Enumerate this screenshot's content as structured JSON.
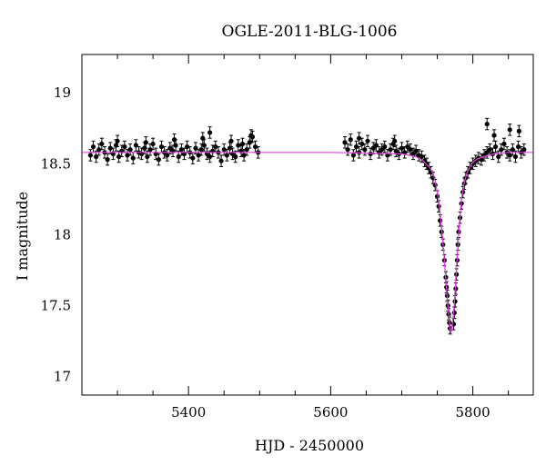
{
  "chart_data": {
    "type": "scatter",
    "title": "OGLE-2011-BLG-1006",
    "xlabel": "HJD - 2450000",
    "ylabel": "I magnitude",
    "xlim": [
      5250,
      5885
    ],
    "ylim": [
      19.27,
      16.87
    ],
    "y_inverted": true,
    "xticks": [
      5400,
      5600,
      5800
    ],
    "yticks": [
      17,
      17.5,
      18,
      18.5,
      19
    ],
    "ytick_labels": [
      "17",
      "17.5",
      "18",
      "18.5",
      "19"
    ],
    "grid": false,
    "legend": "none",
    "colors": {
      "points": "#000000",
      "model": "#e040e0",
      "frame": "#000000"
    },
    "model_curve": {
      "description_free": true,
      "baseline_mag": 18.58,
      "peak_mag": 17.31,
      "peak_time": 5769,
      "x": [
        5250,
        5500,
        5600,
        5700,
        5720,
        5730,
        5740,
        5745,
        5750,
        5753,
        5756,
        5759,
        5762,
        5764,
        5766,
        5768,
        5769,
        5770,
        5772,
        5774,
        5776,
        5778,
        5781,
        5784,
        5788,
        5792,
        5798,
        5805,
        5815,
        5830,
        5850,
        5885
      ],
      "y": [
        18.58,
        18.58,
        18.58,
        18.57,
        18.55,
        18.52,
        18.47,
        18.42,
        18.3,
        18.2,
        18.05,
        17.88,
        17.68,
        17.55,
        17.44,
        17.34,
        17.31,
        17.32,
        17.4,
        17.52,
        17.68,
        17.85,
        18.07,
        18.25,
        18.37,
        18.44,
        18.5,
        18.53,
        18.55,
        18.57,
        18.58,
        18.58
      ]
    },
    "series": [
      {
        "x": [
          5262,
          5266,
          5270,
          5274,
          5278,
          5282,
          5286,
          5290,
          5294,
          5298,
          5302,
          5306,
          5310,
          5314,
          5318,
          5322,
          5326,
          5330,
          5334,
          5338,
          5342,
          5346,
          5350,
          5354,
          5358,
          5362,
          5366,
          5370,
          5374,
          5378,
          5382,
          5386,
          5390,
          5394,
          5398,
          5402,
          5406,
          5410,
          5414,
          5418,
          5422,
          5426,
          5430,
          5434,
          5438,
          5442,
          5446,
          5450,
          5454,
          5458,
          5462,
          5466,
          5470,
          5474,
          5478,
          5482,
          5486,
          5490,
          5494,
          5498,
          5300,
          5340,
          5380,
          5420,
          5460,
          5488,
          5430,
          5476
        ],
        "y": [
          18.56,
          18.62,
          18.55,
          18.6,
          18.64,
          18.58,
          18.53,
          18.61,
          18.57,
          18.63,
          18.55,
          18.59,
          18.62,
          18.56,
          18.6,
          18.54,
          18.63,
          18.58,
          18.57,
          18.61,
          18.55,
          18.6,
          18.64,
          18.57,
          18.53,
          18.62,
          18.58,
          18.56,
          18.61,
          18.59,
          18.63,
          18.55,
          18.6,
          18.57,
          18.62,
          18.58,
          18.54,
          18.61,
          18.56,
          18.6,
          18.63,
          18.57,
          18.55,
          18.59,
          18.62,
          18.58,
          18.52,
          18.6,
          18.56,
          18.61,
          18.57,
          18.55,
          18.63,
          18.59,
          18.56,
          18.6,
          18.65,
          18.69,
          18.62,
          18.58,
          18.66,
          18.65,
          18.67,
          18.68,
          18.66,
          18.7,
          18.72,
          18.64
        ],
        "err": 0.04
      },
      {
        "x": [
          5620,
          5624,
          5628,
          5632,
          5636,
          5640,
          5644,
          5648,
          5652,
          5656,
          5660,
          5664,
          5668,
          5672,
          5676,
          5680,
          5684,
          5688,
          5692,
          5696,
          5700,
          5704,
          5708,
          5712,
          5716,
          5720,
          5724,
          5728,
          5732,
          5735,
          5738,
          5741,
          5744,
          5747,
          5750,
          5752,
          5754,
          5756,
          5758,
          5760,
          5762,
          5763,
          5764,
          5765,
          5766,
          5767,
          5768,
          5773,
          5774,
          5775,
          5776,
          5777,
          5778,
          5779,
          5780,
          5782,
          5784,
          5786,
          5788,
          5790,
          5793,
          5796,
          5800,
          5804,
          5808,
          5812,
          5816,
          5820,
          5824,
          5828,
          5832,
          5836,
          5840,
          5844,
          5848,
          5852,
          5856,
          5860,
          5864,
          5868,
          5872,
          5830,
          5852,
          5820,
          5865,
          5640,
          5690
        ],
        "y": [
          18.65,
          18.6,
          18.67,
          18.56,
          18.62,
          18.58,
          18.64,
          18.6,
          18.66,
          18.57,
          18.61,
          18.63,
          18.58,
          18.6,
          18.62,
          18.56,
          18.6,
          18.64,
          18.59,
          18.57,
          18.61,
          18.58,
          18.62,
          18.6,
          18.57,
          18.59,
          18.56,
          18.55,
          18.52,
          18.5,
          18.47,
          18.44,
          18.4,
          18.35,
          18.27,
          18.2,
          18.1,
          18.02,
          17.93,
          17.82,
          17.7,
          17.63,
          17.57,
          17.5,
          17.44,
          17.38,
          17.34,
          17.37,
          17.45,
          17.53,
          17.62,
          17.72,
          17.82,
          17.93,
          18.02,
          18.12,
          18.22,
          18.3,
          18.36,
          18.4,
          18.44,
          18.47,
          18.5,
          18.52,
          18.54,
          18.53,
          18.56,
          18.58,
          18.6,
          18.57,
          18.62,
          18.55,
          18.6,
          18.64,
          18.58,
          18.56,
          18.6,
          18.55,
          18.62,
          18.58,
          18.6,
          18.7,
          18.74,
          18.78,
          18.73,
          18.68,
          18.66
        ],
        "err": 0.04
      }
    ]
  }
}
